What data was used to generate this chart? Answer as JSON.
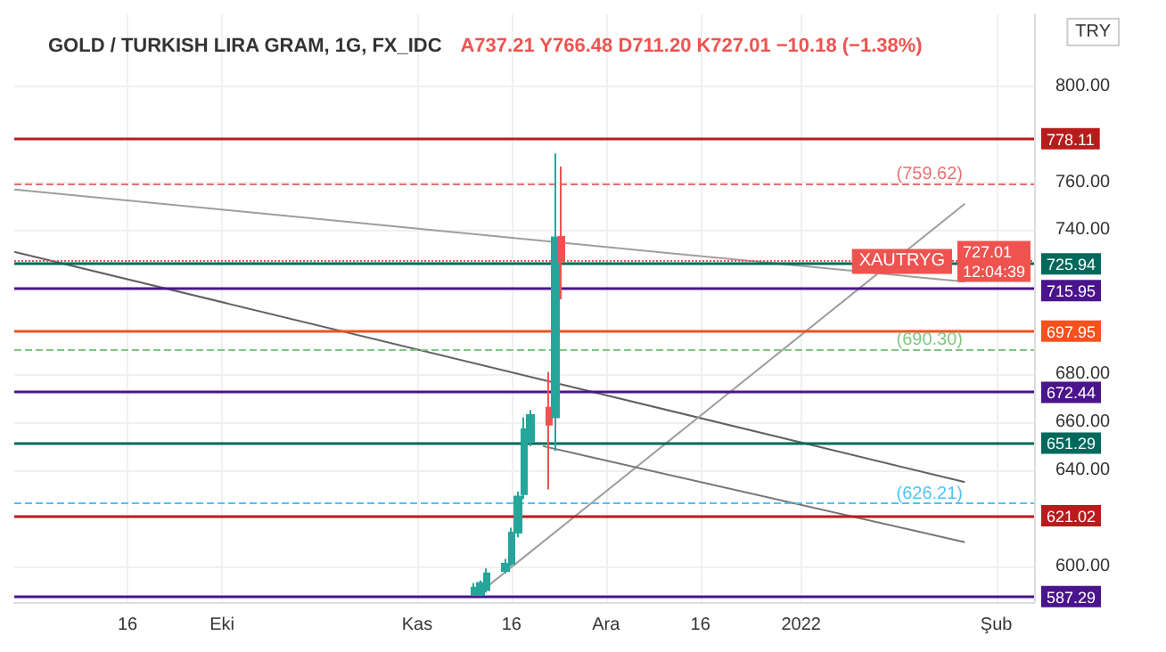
{
  "chart_data": {
    "type": "candlestick",
    "title": "GOLD / TURKISH LIRA GRAM, 1G, FX_IDC",
    "subtitle": "A737.21 Y766.48 D711.20 K727.01 −10.18 (−1.38%)",
    "x": [
      "2021-11-10",
      "2021-11-11",
      "2021-11-12",
      "2021-11-15",
      "2021-11-16",
      "2021-11-17",
      "2021-11-18",
      "2021-11-19",
      "2021-11-22",
      "2021-11-23",
      "2021-11-24"
    ],
    "ohlc": [
      [
        588,
        593,
        587.5,
        591
      ],
      [
        588,
        594,
        587.5,
        593
      ],
      [
        590,
        599,
        589,
        597
      ],
      [
        598,
        603,
        597,
        601
      ],
      [
        601,
        616,
        600,
        614
      ],
      [
        614,
        631,
        612,
        629
      ],
      [
        630,
        662,
        628,
        657
      ],
      [
        652,
        665,
        650,
        663
      ],
      [
        666,
        681,
        632,
        659
      ],
      [
        662,
        772,
        648,
        737
      ],
      [
        737.21,
        766.48,
        711.2,
        727.01
      ]
    ],
    "series": [
      {
        "type": "line",
        "color": "#9e9e9e",
        "x": [
          "2021-08-29",
          "2022-01-27"
        ],
        "values": [
          757,
          718.5
        ]
      },
      {
        "type": "line",
        "color": "#616161",
        "x": [
          "2021-08-29",
          "2022-01-27"
        ],
        "values": [
          731,
          635
        ]
      },
      {
        "type": "line",
        "color": "#9e9e9e",
        "x": [
          "2021-11-10",
          "2022-01-27"
        ],
        "values": [
          587,
          751
        ]
      },
      {
        "type": "line",
        "color": "#757575",
        "x": [
          "2021-11-21",
          "2022-01-27"
        ],
        "values": [
          650,
          610
        ]
      }
    ],
    "xlim": [
      "2021-08-29",
      "2022-02-07"
    ],
    "xticks": [
      {
        "value": "2021-09-16",
        "label": "16"
      },
      {
        "value": "2021-10-01",
        "label": "Eki"
      },
      {
        "value": "2021-11-01",
        "label": "Kas"
      },
      {
        "value": "2021-11-16",
        "label": "16"
      },
      {
        "value": "2021-12-01",
        "label": "Ara"
      },
      {
        "value": "2021-12-16",
        "label": "16"
      },
      {
        "value": "2022-01-01",
        "label": "2022"
      },
      {
        "value": "2022-02-01",
        "label": "Şub"
      }
    ],
    "ylim": [
      585,
      830
    ],
    "yticks": [
      {
        "value": 600,
        "label": "600.00"
      },
      {
        "value": 640,
        "label": "640.00"
      },
      {
        "value": 660,
        "label": "660.00"
      },
      {
        "value": 680,
        "label": "680.00"
      },
      {
        "value": 740,
        "label": "740.00"
      },
      {
        "value": 760,
        "label": "760.00"
      },
      {
        "value": 800,
        "label": "800.00"
      }
    ],
    "ref_lines": [
      {
        "axis": "y",
        "value": 778.11,
        "label": "778.11",
        "color": "#b71c1c"
      },
      {
        "axis": "y",
        "value": 759.62,
        "label": "(759.62)",
        "color": "#e57373",
        "line_style": "dashed"
      },
      {
        "axis": "y",
        "value": 727.01,
        "label": "727.01\n12:04:39",
        "color": "#ef5350",
        "line_style": "dotted"
      },
      {
        "axis": "y",
        "value": 725.94,
        "label": "725.94",
        "color": "#00695c"
      },
      {
        "axis": "y",
        "value": 715.95,
        "label": "715.95",
        "color": "#4a148c"
      },
      {
        "axis": "y",
        "value": 697.95,
        "label": "697.95",
        "color": "#f4511e"
      },
      {
        "axis": "y",
        "value": 690.3,
        "label": "(690.30)",
        "color": "#81c784",
        "line_style": "dashed"
      },
      {
        "axis": "y",
        "value": 672.44,
        "label": "672.44",
        "color": "#4a148c"
      },
      {
        "axis": "y",
        "value": 651.29,
        "label": "651.29",
        "color": "#00695c"
      },
      {
        "axis": "y",
        "value": 626.21,
        "label": "(626.21)",
        "color": "#4fc3f7",
        "line_style": "dashed"
      },
      {
        "axis": "y",
        "value": 621.02,
        "label": "621.02",
        "color": "#b71c1c"
      },
      {
        "axis": "y",
        "value": 587.29,
        "label": "587.29",
        "color": "#4a148c"
      }
    ],
    "annotations": [
      {
        "text": "XAUTRYG",
        "y": 727.01
      },
      "TRY"
    ],
    "grid": true
  }
}
